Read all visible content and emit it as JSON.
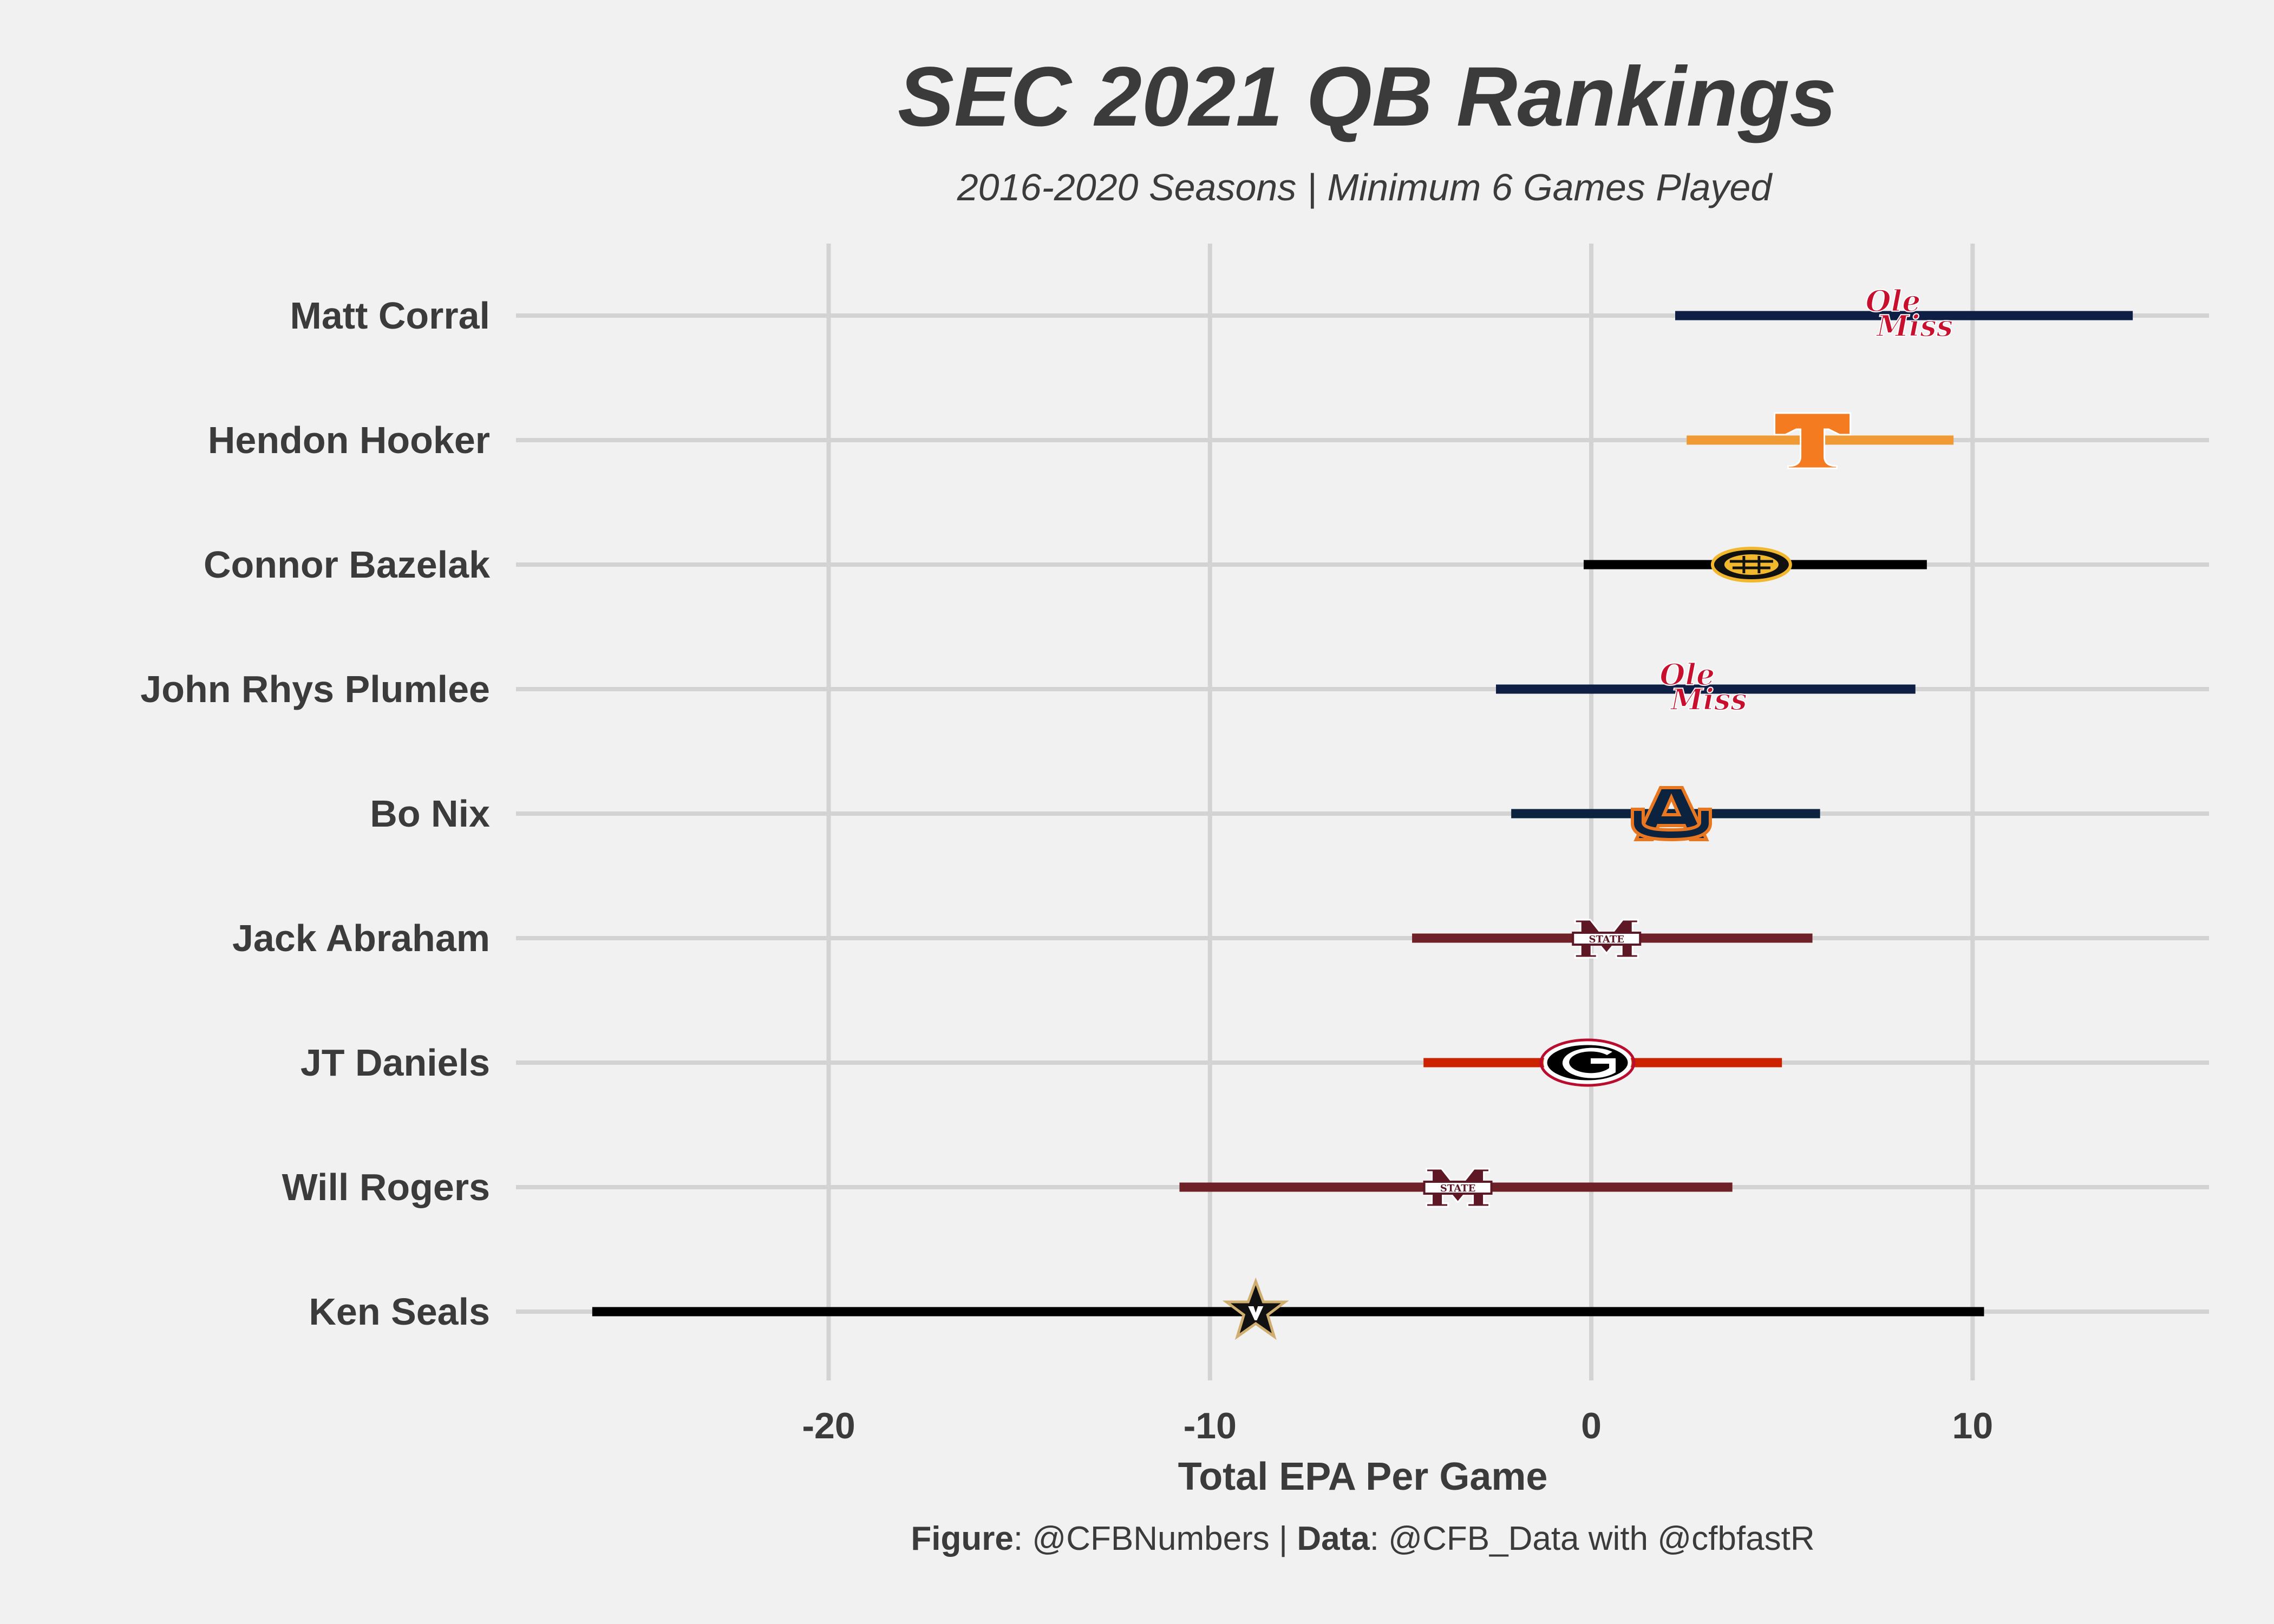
{
  "chart_data": {
    "type": "errorbar",
    "title": "SEC 2021 QB Rankings",
    "subtitle": "2016-2020 Seasons | Minimum 6 Games Played",
    "xlabel": "Total EPA Per Game",
    "xlim": [
      -28.2,
      16.2
    ],
    "xticks": [
      -20,
      -10,
      0,
      10
    ],
    "grid": true,
    "caption": {
      "figure_label": "Figure",
      "figure_value": ": @CFBNumbers | ",
      "data_label": "Data",
      "data_value": ": @CFB_Data with @cfbfastR"
    },
    "players": [
      {
        "name": "Matt Corral",
        "low": 2.2,
        "high": 14.2,
        "center": 8.2,
        "team": "Ole Miss",
        "color": "#0f1e45",
        "logo": "ole-miss-logo"
      },
      {
        "name": "Hendon Hooker",
        "low": 2.5,
        "high": 9.5,
        "center": 5.8,
        "team": "Tennessee",
        "color": "#f09a35",
        "logo": "tennessee-logo"
      },
      {
        "name": "Connor Bazelak",
        "low": -0.2,
        "high": 8.8,
        "center": 4.2,
        "team": "Missouri",
        "color": "#000000",
        "logo": "missouri-logo"
      },
      {
        "name": "John Rhys Plumlee",
        "low": -2.5,
        "high": 8.5,
        "center": 2.8,
        "team": "Ole Miss",
        "color": "#0f1e45",
        "logo": "ole-miss-logo"
      },
      {
        "name": "Bo Nix",
        "low": -2.1,
        "high": 6.0,
        "center": 2.1,
        "team": "Auburn",
        "color": "#0c2340",
        "logo": "auburn-logo"
      },
      {
        "name": "Jack Abraham",
        "low": -4.7,
        "high": 5.8,
        "center": 0.4,
        "team": "Mississippi State",
        "color": "#6e2227",
        "logo": "mississippi-state-logo"
      },
      {
        "name": "JT Daniels",
        "low": -4.4,
        "high": 5.0,
        "center": -0.1,
        "team": "Georgia",
        "color": "#cc2200",
        "logo": "georgia-logo"
      },
      {
        "name": "Will Rogers",
        "low": -10.8,
        "high": 3.7,
        "center": -3.5,
        "team": "Mississippi State",
        "color": "#6e2227",
        "logo": "mississippi-state-logo"
      },
      {
        "name": "Ken Seals",
        "low": -26.2,
        "high": 10.3,
        "center": -8.8,
        "team": "Vanderbilt",
        "color": "#000000",
        "logo": "vanderbilt-logo"
      }
    ]
  }
}
